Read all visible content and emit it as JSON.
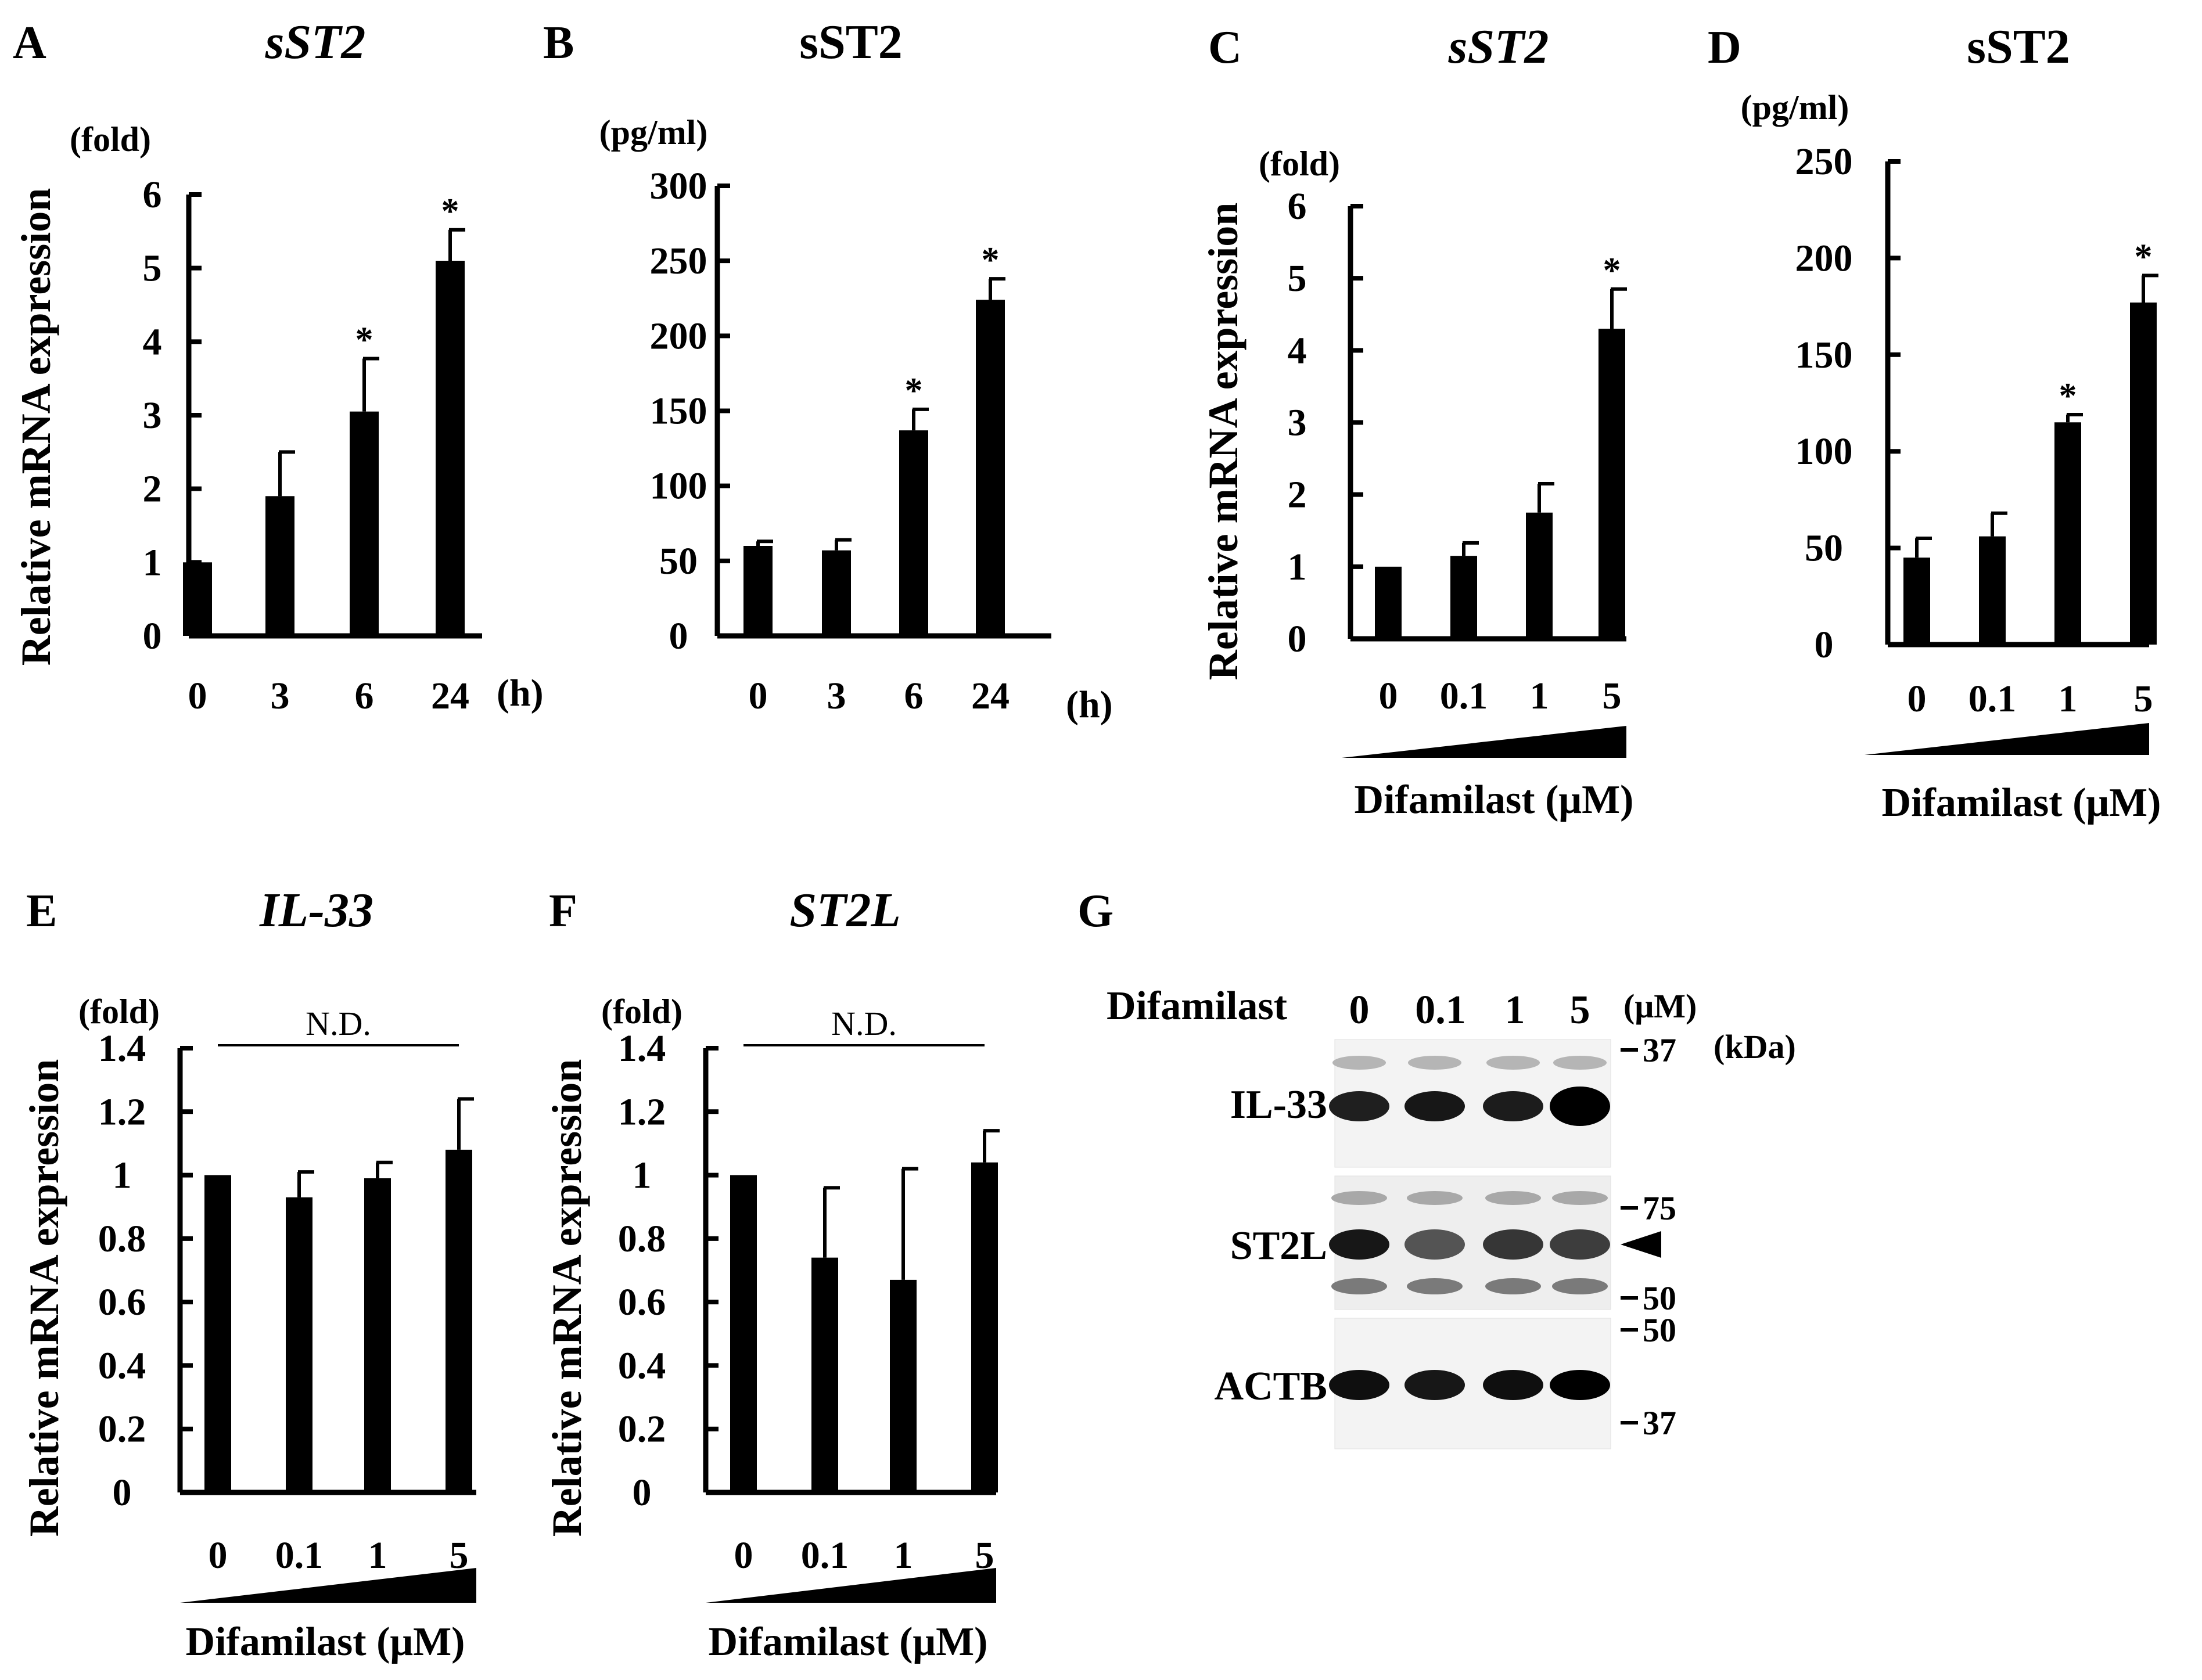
{
  "chart_data": [
    {
      "type": "bar",
      "panel": "A",
      "title": "sST2",
      "title_italic": true,
      "ylabel": "Relative mRNA expression",
      "yunit": "(fold)",
      "xunit": "(h)",
      "categories": [
        "0",
        "3",
        "6",
        "24"
      ],
      "values": [
        1.0,
        1.9,
        3.05,
        5.1
      ],
      "errors": [
        0,
        0.6,
        0.72,
        0.42
      ],
      "significant": [
        false,
        false,
        true,
        true
      ],
      "ylim": [
        0,
        6
      ],
      "yticks": [
        "0",
        "1",
        "2",
        "3",
        "4",
        "5",
        "6"
      ],
      "star_label": "*"
    },
    {
      "type": "bar",
      "panel": "B",
      "title": "sST2",
      "title_italic": false,
      "ylabel": "",
      "yunit": "(pg/ml)",
      "xunit": "(h)",
      "categories": [
        "0",
        "3",
        "6",
        "24"
      ],
      "values": [
        60,
        57,
        137,
        224
      ],
      "errors": [
        3,
        7,
        14,
        14
      ],
      "significant": [
        false,
        false,
        true,
        true
      ],
      "ylim": [
        0,
        300
      ],
      "yticks": [
        "0",
        "50",
        "100",
        "150",
        "200",
        "250",
        "300"
      ],
      "star_label": "*"
    },
    {
      "type": "bar",
      "panel": "C",
      "title": "sST2",
      "title_italic": true,
      "ylabel": "Relative mRNA expression",
      "yunit": "(fold)",
      "xlabel": "Difamilast (μM)",
      "categories": [
        "0",
        "0.1",
        "1",
        "5"
      ],
      "values": [
        1.0,
        1.15,
        1.75,
        4.3
      ],
      "errors": [
        0,
        0.18,
        0.4,
        0.55
      ],
      "significant": [
        false,
        false,
        false,
        true
      ],
      "ylim": [
        0,
        6
      ],
      "yticks": [
        "0",
        "1",
        "2",
        "3",
        "4",
        "5",
        "6"
      ],
      "star_label": "*"
    },
    {
      "type": "bar",
      "panel": "D",
      "title": "sST2",
      "title_italic": false,
      "ylabel": "",
      "yunit": "(pg/ml)",
      "xlabel": "Difamilast (μM)",
      "categories": [
        "0",
        "0.1",
        "1",
        "5"
      ],
      "values": [
        45,
        56,
        115,
        177
      ],
      "errors": [
        10,
        12,
        4,
        14
      ],
      "significant": [
        false,
        false,
        true,
        true
      ],
      "ylim": [
        0,
        250
      ],
      "yticks": [
        "0",
        "50",
        "100",
        "150",
        "200",
        "250"
      ],
      "star_label": "*"
    },
    {
      "type": "bar",
      "panel": "E",
      "title": "IL-33",
      "title_italic": true,
      "ylabel": "Relative mRNA expression",
      "yunit": "(fold)",
      "xlabel": "Difamilast (μM)",
      "categories": [
        "0",
        "0.1",
        "1",
        "5"
      ],
      "values": [
        1.0,
        0.93,
        0.99,
        1.08
      ],
      "errors": [
        0,
        0.08,
        0.05,
        0.16
      ],
      "significant": [
        false,
        false,
        false,
        false
      ],
      "ylim": [
        0,
        1.4
      ],
      "yticks": [
        "0",
        "0.2",
        "0.4",
        "0.6",
        "0.8",
        "1",
        "1.2",
        "1.4"
      ],
      "annotation": "N.D."
    },
    {
      "type": "bar",
      "panel": "F",
      "title": "ST2L",
      "title_italic": true,
      "ylabel": "Relative mRNA expression",
      "yunit": "(fold)",
      "xlabel": "Difamilast (μM)",
      "categories": [
        "0",
        "0.1",
        "1",
        "5"
      ],
      "values": [
        1.0,
        0.74,
        0.67,
        1.04
      ],
      "errors": [
        0,
        0.22,
        0.35,
        0.1
      ],
      "significant": [
        false,
        false,
        false,
        false
      ],
      "ylim": [
        0,
        1.4
      ],
      "yticks": [
        "0",
        "0.2",
        "0.4",
        "0.6",
        "0.8",
        "1",
        "1.2",
        "1.4"
      ],
      "annotation": "N.D."
    }
  ],
  "blot": {
    "panel": "G",
    "treatment_label": "Difamilast",
    "unit": "(μM)",
    "mw_unit": "(kDa)",
    "lanes": [
      "0",
      "0.1",
      "1",
      "5"
    ],
    "rows": [
      {
        "name": "IL-33",
        "markers": [
          "37"
        ],
        "band_intensity": [
          0.8,
          0.85,
          0.82,
          1.0
        ]
      },
      {
        "name": "ST2L",
        "markers": [
          "75",
          "50"
        ],
        "band_intensity": [
          0.85,
          0.45,
          0.65,
          0.6
        ]
      },
      {
        "name": "ACTB",
        "markers": [
          "50",
          "37"
        ],
        "band_intensity": [
          0.9,
          0.85,
          0.9,
          1.0
        ]
      }
    ],
    "arrowhead_target": "ST2L"
  }
}
